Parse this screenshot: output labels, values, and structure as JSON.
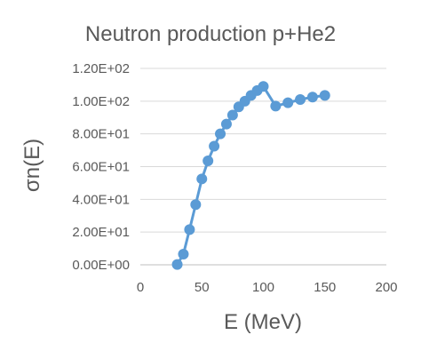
{
  "chart_data": {
    "type": "line",
    "title": "Neutron production p+He2",
    "xlabel": "E (MeV)",
    "ylabel": "σn(E)",
    "xlim": [
      0,
      200
    ],
    "ylim": [
      0,
      120
    ],
    "x_ticks": [
      0,
      50,
      100,
      150,
      200
    ],
    "x_tick_labels": [
      "0",
      "50",
      "100",
      "150",
      "200"
    ],
    "y_ticks": [
      0,
      20,
      40,
      60,
      80,
      100,
      120
    ],
    "y_tick_labels": [
      "0.00E+00",
      "2.00E+01",
      "4.00E+01",
      "6.00E+01",
      "8.00E+01",
      "1.00E+02",
      "1.20E+02"
    ],
    "grid": "horizontal",
    "legend": "none",
    "series": [
      {
        "color": "#5b9bd5",
        "x": [
          30,
          35,
          40,
          45,
          50,
          55,
          60,
          65,
          70,
          75,
          80,
          85,
          90,
          95,
          100,
          110,
          120,
          130,
          140,
          150
        ],
        "y": [
          0.2,
          6.5,
          21.5,
          36.8,
          52.5,
          63.5,
          72.5,
          80,
          86,
          91.5,
          96.5,
          100,
          103.5,
          106.5,
          109,
          97,
          99,
          101,
          102.5,
          103.5
        ]
      }
    ]
  }
}
